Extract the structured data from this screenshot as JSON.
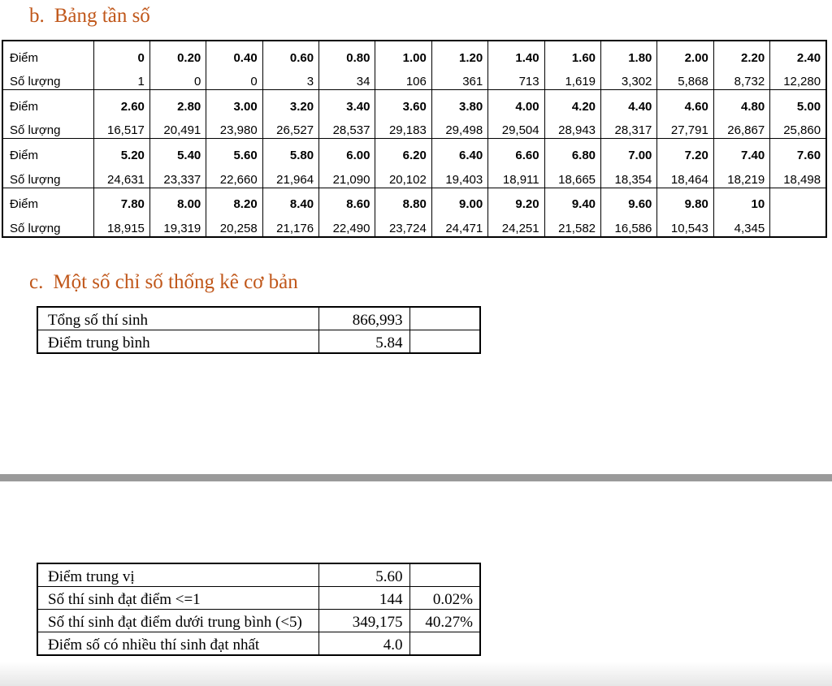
{
  "colors": {
    "heading": "#c0571a",
    "divider": "#9a9a9a"
  },
  "section_b": {
    "num": "b.",
    "title": "Bảng tần số"
  },
  "section_c": {
    "num": "c.",
    "title": "Một số chỉ số thống kê cơ bản"
  },
  "frequency_table": {
    "rows": [
      {
        "type": "score",
        "label": "Điểm",
        "cells": [
          "0",
          "0.20",
          "0.40",
          "0.60",
          "0.80",
          "1.00",
          "1.20",
          "1.40",
          "1.60",
          "1.80",
          "2.00",
          "2.20",
          "2.40"
        ]
      },
      {
        "type": "count",
        "label": "Số lượng",
        "cells": [
          "1",
          "0",
          "0",
          "3",
          "34",
          "106",
          "361",
          "713",
          "1,619",
          "3,302",
          "5,868",
          "8,732",
          "12,280"
        ]
      },
      {
        "type": "score",
        "label": "Điểm",
        "cells": [
          "2.60",
          "2.80",
          "3.00",
          "3.20",
          "3.40",
          "3.60",
          "3.80",
          "4.00",
          "4.20",
          "4.40",
          "4.60",
          "4.80",
          "5.00"
        ]
      },
      {
        "type": "count",
        "label": "Số lượng",
        "cells": [
          "16,517",
          "20,491",
          "23,980",
          "26,527",
          "28,537",
          "29,183",
          "29,498",
          "29,504",
          "28,943",
          "28,317",
          "27,791",
          "26,867",
          "25,860"
        ]
      },
      {
        "type": "score",
        "label": "Điểm",
        "cells": [
          "5.20",
          "5.40",
          "5.60",
          "5.80",
          "6.00",
          "6.20",
          "6.40",
          "6.60",
          "6.80",
          "7.00",
          "7.20",
          "7.40",
          "7.60"
        ]
      },
      {
        "type": "count",
        "label": "Số lượng",
        "cells": [
          "24,631",
          "23,337",
          "22,660",
          "21,964",
          "21,090",
          "20,102",
          "19,403",
          "18,911",
          "18,665",
          "18,354",
          "18,464",
          "18,219",
          "18,498"
        ]
      },
      {
        "type": "score",
        "label": "Điểm",
        "cells": [
          "7.80",
          "8.00",
          "8.20",
          "8.40",
          "8.60",
          "8.80",
          "9.00",
          "9.20",
          "9.40",
          "9.60",
          "9.80",
          "10",
          ""
        ]
      },
      {
        "type": "count",
        "label": "Số lượng",
        "cells": [
          "18,915",
          "19,319",
          "20,258",
          "21,176",
          "22,490",
          "23,724",
          "24,471",
          "24,251",
          "21,582",
          "16,586",
          "10,543",
          "4,345",
          ""
        ]
      }
    ]
  },
  "basic_stats": [
    {
      "label": "Tổng số thí sinh",
      "value": "866,993",
      "extra": ""
    },
    {
      "label": "Điểm trung bình",
      "value": "5.84",
      "extra": ""
    }
  ],
  "more_stats": [
    {
      "label": "Điểm trung vị",
      "value": "5.60",
      "extra": ""
    },
    {
      "label": "Số thí sinh đạt điểm <=1",
      "value": "144",
      "extra": "0.02%"
    },
    {
      "label": "Số thí sinh đạt điểm dưới trung bình (<5)",
      "value": "349,175",
      "extra": "40.27%"
    },
    {
      "label": "Điểm số có nhiều thí sinh đạt nhất",
      "value": "4.0",
      "extra": ""
    }
  ]
}
